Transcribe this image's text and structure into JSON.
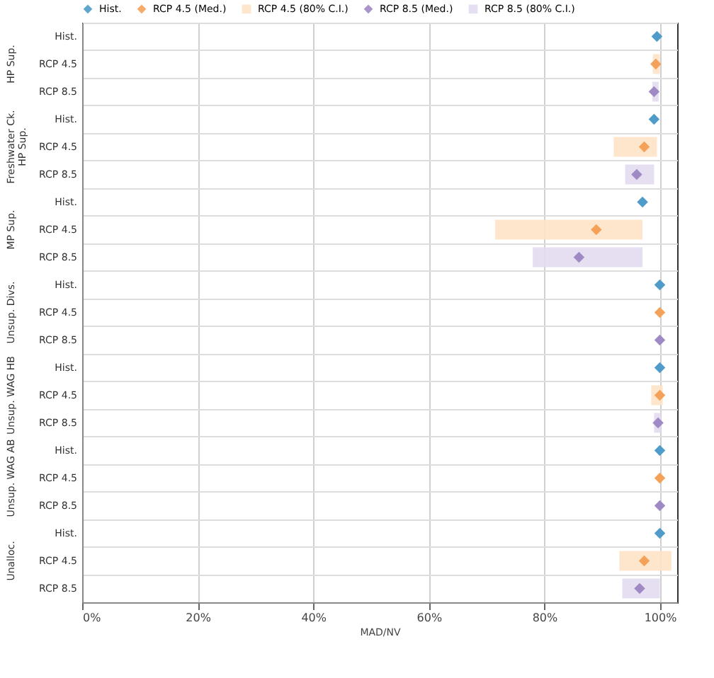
{
  "chart_data": {
    "type": "scatter",
    "xlabel": "MAD/NV",
    "orientation": "horizontal",
    "marker": "diamond",
    "grid": true,
    "legend": "top",
    "xlim": [
      0,
      103
    ],
    "xticks": [
      {
        "value": 0,
        "label": "0%"
      },
      {
        "value": 20,
        "label": "20%"
      },
      {
        "value": 40,
        "label": "40%"
      },
      {
        "value": 60,
        "label": "60%"
      },
      {
        "value": 80,
        "label": "80%"
      },
      {
        "value": 100,
        "label": "100%"
      }
    ],
    "annotations": [
      "HP Sup.",
      "Freshwater Ck.\nHP Sup.",
      "MP Sup.",
      "Unsup. Divs.",
      "Unsup. WAG HB",
      "Unsup. WAG AB",
      "Unalloc."
    ],
    "categories": [
      "Hist.",
      "RCP 4.5",
      "RCP 8.5",
      "Hist.",
      "RCP 4.5",
      "RCP 8.5",
      "Hist.",
      "RCP 4.5",
      "RCP 8.5",
      "Hist.",
      "RCP 4.5",
      "RCP 8.5",
      "Hist.",
      "RCP 4.5",
      "RCP 8.5",
      "Hist.",
      "RCP 4.5",
      "RCP 8.5",
      "Hist.",
      "RCP 4.5",
      "RCP 8.5"
    ],
    "series": [
      {
        "name": "Hist.",
        "type": "scatter",
        "color": "#4f9bc9",
        "values": [
          99.5,
          null,
          null,
          99,
          null,
          null,
          97,
          null,
          null,
          100,
          null,
          null,
          100,
          null,
          null,
          100,
          null,
          null,
          100,
          null,
          null
        ]
      },
      {
        "name": "RCP 4.5 (Med.)",
        "type": "scatter",
        "color": "#f4a259",
        "values": [
          null,
          99.3,
          null,
          null,
          97.3,
          null,
          null,
          89,
          null,
          null,
          100,
          null,
          null,
          100,
          null,
          null,
          100,
          null,
          null,
          97.3,
          null
        ]
      },
      {
        "name": "RCP 4.5 (80% C.I.)",
        "type": "bar",
        "color": "#fde3c6",
        "base": [
          null,
          98.8,
          null,
          null,
          92,
          null,
          null,
          71.5,
          null,
          null,
          null,
          null,
          null,
          98.5,
          null,
          null,
          null,
          null,
          null,
          93,
          null
        ],
        "values": [
          null,
          1.2,
          null,
          null,
          7.5,
          null,
          null,
          25.5,
          null,
          null,
          null,
          null,
          null,
          2,
          null,
          null,
          null,
          null,
          null,
          9,
          null
        ]
      },
      {
        "name": "RCP 8.5 (Med.)",
        "type": "scatter",
        "color": "#a08ac6",
        "values": [
          null,
          null,
          99,
          null,
          null,
          96,
          null,
          null,
          86,
          null,
          null,
          100,
          null,
          null,
          99.7,
          null,
          null,
          100,
          null,
          null,
          96.5
        ]
      },
      {
        "name": "RCP 8.5 (80% C.I.)",
        "type": "bar",
        "color": "#e2dbf0",
        "base": [
          null,
          null,
          98.7,
          null,
          null,
          94,
          null,
          null,
          78,
          null,
          null,
          null,
          null,
          null,
          99,
          null,
          null,
          null,
          null,
          null,
          93.5
        ],
        "values": [
          null,
          null,
          1.1,
          null,
          null,
          5,
          null,
          null,
          19,
          null,
          null,
          null,
          null,
          null,
          1.2,
          null,
          null,
          null,
          null,
          null,
          6.5
        ]
      }
    ]
  }
}
